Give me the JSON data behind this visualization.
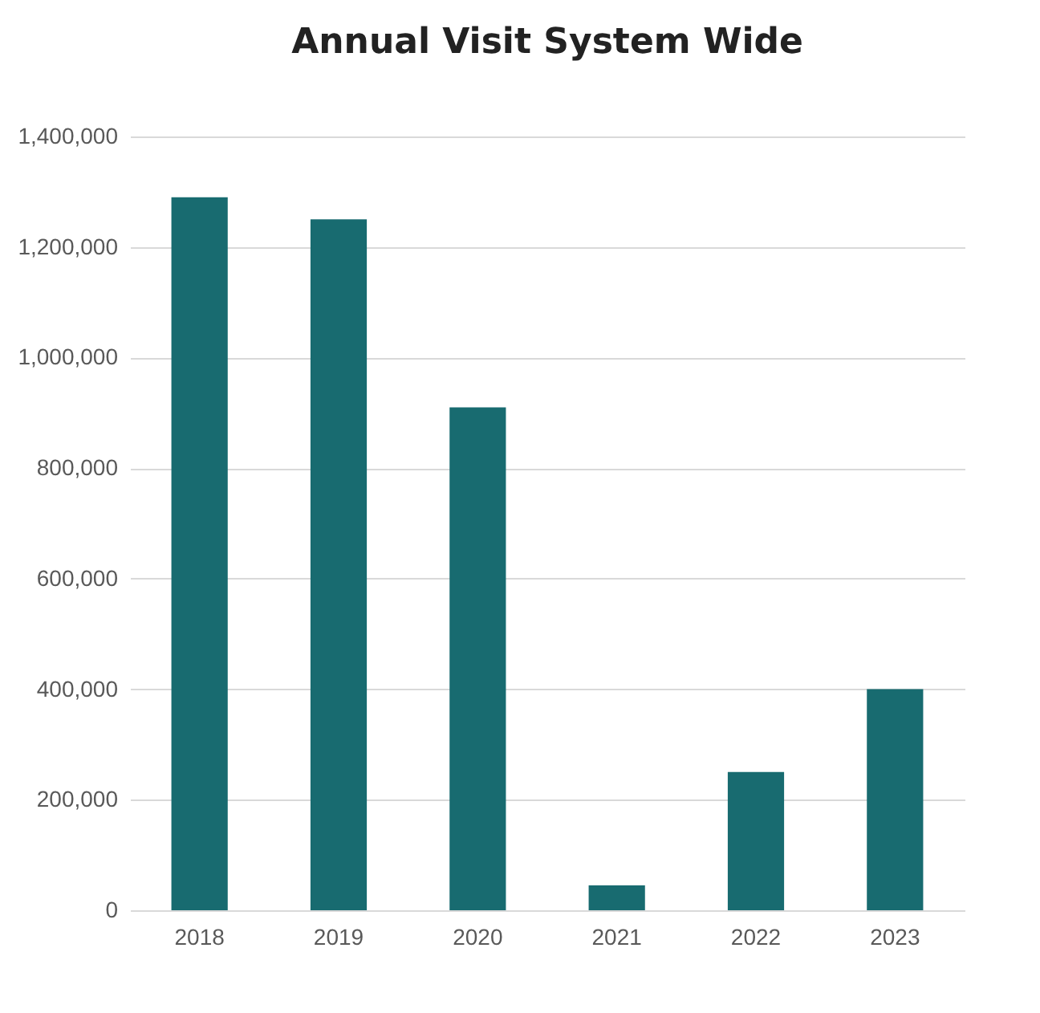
{
  "chart_data": {
    "type": "bar",
    "title": "Annual Visit System Wide",
    "categories": [
      "2018",
      "2019",
      "2020",
      "2021",
      "2022",
      "2023"
    ],
    "values": [
      1290000,
      1250000,
      910000,
      45000,
      250000,
      400000
    ],
    "color": "#186b70",
    "ylim": [
      0,
      1400000
    ],
    "yticks": [
      0,
      {
        "value": 200000,
        "label": "200,000"
      },
      {
        "value": 400000,
        "label": "400,000"
      },
      {
        "value": 600000,
        "label": "600,000"
      },
      {
        "value": 800000,
        "label": "800,000"
      },
      {
        "value": 1000000,
        "label": "1,000,000"
      },
      {
        "value": 1200000,
        "label": "1,200,000"
      },
      {
        "value": 1400000,
        "label": "1,400,000"
      }
    ],
    "grid": "y"
  }
}
